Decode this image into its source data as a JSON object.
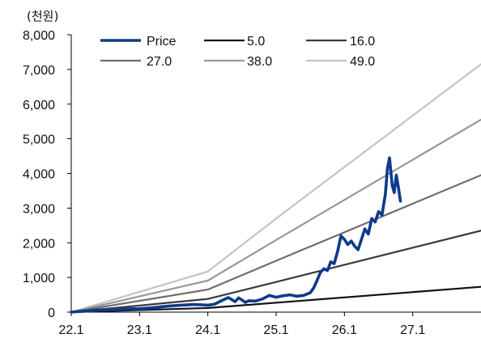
{
  "chart_data": {
    "type": "line",
    "unit_label": "(천원)",
    "y_ticks": [
      "0",
      "1,000",
      "2,000",
      "3,000",
      "4,000",
      "5,000",
      "6,000",
      "7,000",
      "8,000"
    ],
    "x_ticks": [
      "22.1",
      "23.1",
      "24.1",
      "25.1",
      "26.1",
      "27.1"
    ],
    "x_tick_values": [
      2022.0,
      2023.0,
      2024.0,
      2025.0,
      2026.0,
      2027.0
    ],
    "xlim": [
      2022.0,
      2028.0
    ],
    "ylim": [
      0,
      8000
    ],
    "grid": false,
    "legend_position": "top",
    "series": [
      {
        "name": "Price",
        "color": "#0e3a8c",
        "width": 3.6,
        "x": [
          2022.0,
          2022.2,
          2022.4,
          2022.6,
          2022.8,
          2023.0,
          2023.2,
          2023.4,
          2023.6,
          2023.8,
          2024.0,
          2024.1,
          2024.2,
          2024.3,
          2024.4,
          2024.45,
          2024.5,
          2024.55,
          2024.6,
          2024.7,
          2024.8,
          2024.9,
          2025.0,
          2025.1,
          2025.2,
          2025.3,
          2025.4,
          2025.5,
          2025.55,
          2025.6,
          2025.65,
          2025.7,
          2025.75,
          2025.8,
          2025.85,
          2025.9,
          2025.95,
          2026.0,
          2026.05,
          2026.1,
          2026.15,
          2026.2,
          2026.25,
          2026.3,
          2026.35,
          2026.4,
          2026.45,
          2026.5,
          2026.55,
          2026.6,
          2026.63,
          2026.66,
          2026.7,
          2026.73,
          2026.76,
          2026.79,
          2026.82
        ],
        "values": [
          0,
          30,
          60,
          70,
          90,
          100,
          130,
          170,
          200,
          220,
          200,
          230,
          330,
          420,
          300,
          410,
          350,
          280,
          330,
          320,
          380,
          480,
          430,
          470,
          500,
          460,
          480,
          560,
          700,
          920,
          1150,
          1250,
          1200,
          1450,
          1400,
          1750,
          2200,
          2100,
          1950,
          2050,
          1900,
          1800,
          2100,
          2400,
          2250,
          2700,
          2600,
          2900,
          2800,
          3400,
          4150,
          4450,
          3650,
          3450,
          3950,
          3600,
          3200
        ]
      },
      {
        "name": "5.0",
        "color": "#111111",
        "width": 2.2,
        "x": [
          2022.0,
          2024.0,
          2028.0
        ],
        "values": [
          0,
          120,
          730
        ]
      },
      {
        "name": "16.0",
        "color": "#3a3a3a",
        "width": 2.2,
        "x": [
          2022.0,
          2024.0,
          2025.0,
          2028.0
        ],
        "values": [
          0,
          380,
          870,
          2350
        ]
      },
      {
        "name": "27.0",
        "color": "#6d6d6d",
        "width": 2.2,
        "x": [
          2022.0,
          2024.0,
          2025.0,
          2028.0
        ],
        "values": [
          0,
          650,
          1480,
          3950
        ]
      },
      {
        "name": "38.0",
        "color": "#989898",
        "width": 2.2,
        "x": [
          2022.0,
          2024.0,
          2025.0,
          2028.0
        ],
        "values": [
          0,
          910,
          2080,
          5550
        ]
      },
      {
        "name": "49.0",
        "color": "#c4c4c4",
        "width": 2.2,
        "x": [
          2022.0,
          2024.0,
          2025.0,
          2028.0
        ],
        "values": [
          0,
          1170,
          2700,
          7150
        ]
      }
    ]
  }
}
